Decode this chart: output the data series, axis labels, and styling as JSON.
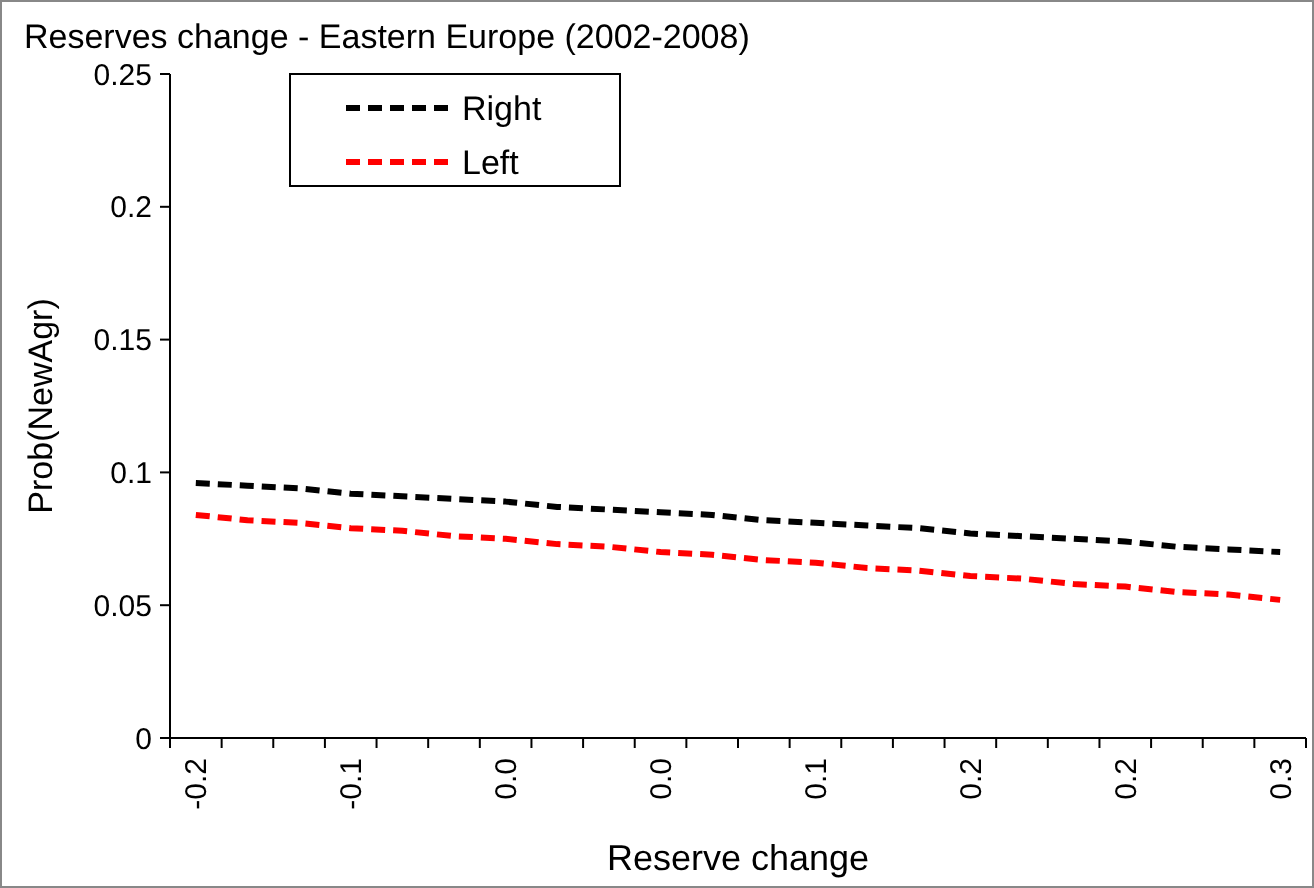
{
  "chart_data": {
    "type": "line",
    "title": "Reserves change - Eastern Europe (2002-2008)",
    "xlabel": "Reserve change",
    "ylabel": "Prob(NewAgr)",
    "categories": [
      "-0.2",
      null,
      null,
      "-0.1",
      null,
      null,
      "0.0",
      null,
      null,
      "0.0",
      null,
      null,
      "0.1",
      null,
      null,
      "0.2",
      null,
      null,
      "0.2",
      null,
      null,
      "0.3"
    ],
    "series": [
      {
        "name": "Right",
        "color": "#000000",
        "values": [
          0.096,
          0.095,
          0.094,
          0.092,
          0.091,
          0.09,
          0.089,
          0.087,
          0.086,
          0.085,
          0.084,
          0.082,
          0.081,
          0.08,
          0.079,
          0.077,
          0.076,
          0.075,
          0.074,
          0.072,
          0.071,
          0.07
        ]
      },
      {
        "name": "Left",
        "color": "#ff0000",
        "values": [
          0.084,
          0.082,
          0.081,
          0.079,
          0.078,
          0.076,
          0.075,
          0.073,
          0.072,
          0.07,
          0.069,
          0.067,
          0.066,
          0.064,
          0.063,
          0.061,
          0.06,
          0.058,
          0.057,
          0.055,
          0.054,
          0.052
        ]
      }
    ],
    "ylim": [
      0,
      0.25
    ],
    "yticks": [
      0,
      0.05,
      0.1,
      0.15,
      0.2,
      0.25
    ],
    "legend": "top left",
    "line_style": "dashed",
    "grid": false
  }
}
